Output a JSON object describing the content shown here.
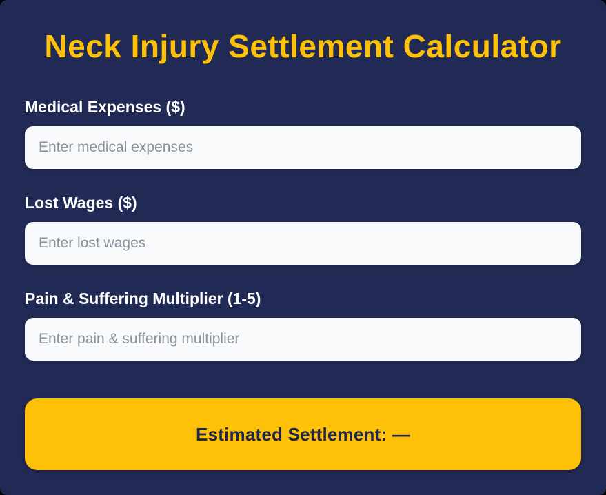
{
  "page": {
    "title": "Neck Injury Settlement Calculator",
    "colors": {
      "background": "#212A54",
      "accent_yellow": "#FFC107",
      "input_background": "#F8F9FA",
      "label_text": "#FFFFFF",
      "placeholder_text": "#8A919E",
      "result_text": "#1E2749"
    }
  },
  "form": {
    "fields": [
      {
        "label": "Medical Expenses ($)",
        "placeholder": "Enter medical expenses",
        "value": ""
      },
      {
        "label": "Lost Wages ($)",
        "placeholder": "Enter lost wages",
        "value": ""
      },
      {
        "label": "Pain & Suffering Multiplier (1-5)",
        "placeholder": "Enter pain & suffering multiplier",
        "value": ""
      }
    ]
  },
  "result": {
    "label": "Estimated Settlement: —"
  }
}
